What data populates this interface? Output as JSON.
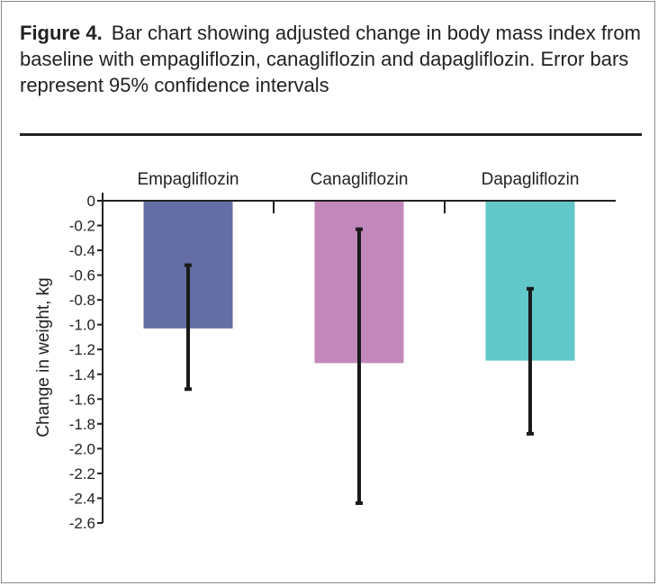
{
  "caption": {
    "label": "Figure 4.",
    "text": "Bar chart showing adjusted change in body mass index from baseline with empagliflozin, canagliflozin and dapagliflozin. Error bars represent 95% confidence intervals"
  },
  "chart_data": {
    "type": "bar",
    "categories": [
      "Empagliflozin",
      "Canagliflozin",
      "Dapagliflozin"
    ],
    "values": [
      -1.03,
      -1.31,
      -1.29
    ],
    "error_low": [
      -1.52,
      -2.44,
      -1.88
    ],
    "error_high": [
      -0.52,
      -0.23,
      -0.71
    ],
    "colors": [
      "#646ea4",
      "#c388bb",
      "#62c7c9"
    ],
    "ylabel": "Change in weight, kg",
    "xlabel": "",
    "ylim": [
      -2.6,
      0
    ],
    "yticks": [
      "0",
      "-0.2",
      "-0.4",
      "-0.6",
      "-0.8",
      "-1.0",
      "-1.2",
      "-1.4",
      "-1.6",
      "-1.8",
      "-2.0",
      "-2.2",
      "-2.4",
      "-2.6"
    ],
    "category_position": "top",
    "grid": false
  }
}
